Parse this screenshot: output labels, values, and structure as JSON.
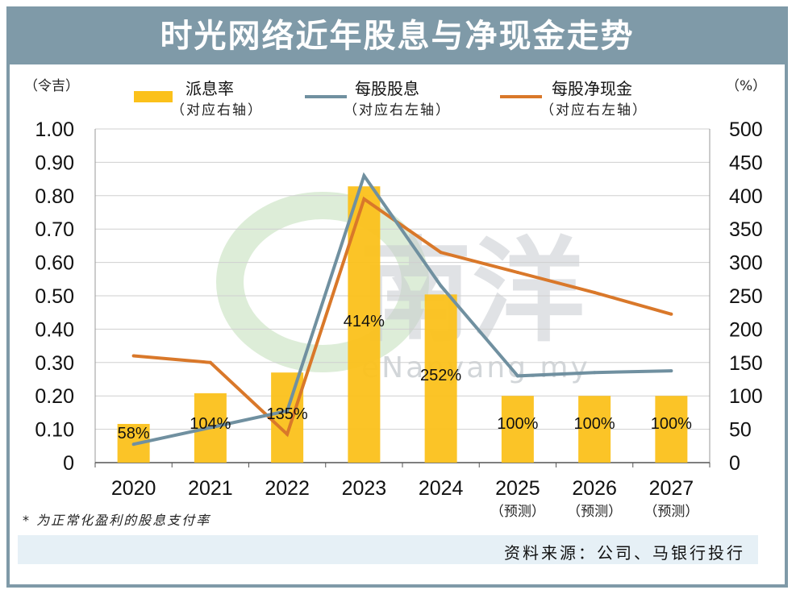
{
  "title": "时光网络近年股息与净现金走势",
  "left_unit": "（令吉）",
  "right_unit": "（%）",
  "legend": [
    {
      "name": "派息率",
      "note": "（对应右轴）",
      "color": "#fbc11b",
      "kind": "bar"
    },
    {
      "name": "每股股息",
      "note": "（对应右左轴）",
      "color": "#7090a0",
      "kind": "line"
    },
    {
      "name": "每股净现金",
      "note": "（对应右左轴）",
      "color": "#d9782a",
      "kind": "line"
    }
  ],
  "footnote": "* 为正常化盈利的股息支付率",
  "source": "资料来源：公司、马银行投行",
  "watermark": {
    "logo_text": "南洋",
    "url_text": "eNanyang.my"
  },
  "chart_data": {
    "type": "bar",
    "categories": [
      "2020",
      "2021",
      "2022",
      "2023",
      "2024",
      "2025",
      "2026",
      "2027"
    ],
    "category_sublabels": [
      "",
      "",
      "",
      "",
      "",
      "（预测）",
      "（预测）",
      "（预测）"
    ],
    "left_axis": {
      "ylim": [
        0,
        1.0
      ],
      "ticks": [
        "0",
        "0.10",
        "0.20",
        "0.30",
        "0.40",
        "0.50",
        "0.60",
        "0.70",
        "0.80",
        "0.90",
        "1.00"
      ]
    },
    "right_axis": {
      "ylim": [
        0,
        500
      ],
      "ticks": [
        "0",
        "50",
        "100",
        "150",
        "200",
        "250",
        "300",
        "350",
        "400",
        "450",
        "500"
      ]
    },
    "series": [
      {
        "name": "派息率",
        "axis": "right",
        "type": "bar",
        "color": "#fbc11b",
        "values": [
          58,
          104,
          135,
          414,
          252,
          100,
          100,
          100
        ],
        "labels": [
          "58%",
          "104%",
          "135%",
          "414%",
          "252%",
          "100%",
          "100%",
          "100%"
        ]
      },
      {
        "name": "每股股息",
        "axis": "left",
        "type": "line",
        "color": "#7090a0",
        "values": [
          0.055,
          0.105,
          0.155,
          0.86,
          0.53,
          0.26,
          0.27,
          0.275
        ]
      },
      {
        "name": "每股净现金",
        "axis": "left",
        "type": "line",
        "color": "#d9782a",
        "values": [
          0.32,
          0.3,
          0.085,
          0.79,
          0.63,
          0.57,
          0.51,
          0.445
        ]
      }
    ],
    "grid": true
  }
}
